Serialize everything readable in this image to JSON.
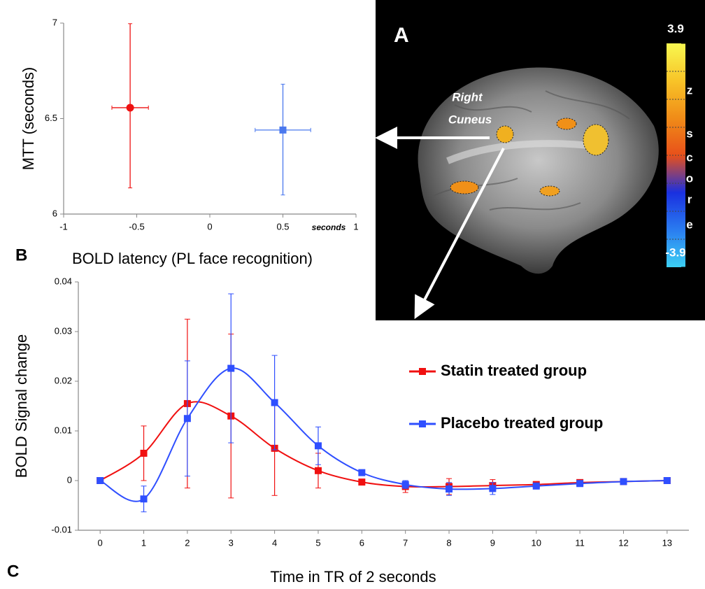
{
  "panel_a": {
    "label": "A",
    "annotation": [
      "Right",
      "Cuneus"
    ],
    "colorbar": {
      "lim": [
        -3.9,
        3.9
      ],
      "ticks": [
        3.9,
        -3.9
      ],
      "colors": [
        "#3cd0f4",
        "#2a7cf0",
        "#1a30e0",
        "#e8501a",
        "#f08c18",
        "#f8c428",
        "#f8f850"
      ],
      "title": [
        "z",
        "s",
        "c",
        "o",
        "r",
        "e"
      ]
    }
  },
  "chart_data": [
    {
      "type": "scatter",
      "panel_label": "B",
      "xlabel": "BOLD latency (PL face recognition)",
      "ylabel": "MTT (seconds)",
      "annotation": "seconds",
      "xlim": [
        -1,
        1
      ],
      "xticks": [
        -1,
        -0.5,
        0,
        0.5,
        1
      ],
      "ylim": [
        6,
        7
      ],
      "yticks": [
        6,
        6.5,
        7
      ],
      "series": [
        {
          "color": "#ee1111",
          "marker": "circle",
          "x": [
            -0.545
          ],
          "values": [
            6.557
          ],
          "xerr": [
            0.125
          ],
          "yerr_minus": [
            0.42
          ],
          "yerr_plus": [
            0.44
          ]
        },
        {
          "color": "#4a78ee",
          "marker": "square",
          "x": [
            0.5
          ],
          "values": [
            6.44
          ],
          "xerr": [
            0.19
          ],
          "yerr_minus": [
            0.34
          ],
          "yerr_plus": [
            0.24
          ]
        }
      ]
    },
    {
      "type": "line",
      "panel_label": "C",
      "xlabel": "Time in TR of 2 seconds",
      "ylabel": "BOLD Signal change",
      "x": [
        0,
        1,
        2,
        3,
        4,
        5,
        6,
        7,
        8,
        9,
        10,
        11,
        12,
        13
      ],
      "xlim": [
        -0.5,
        13.5
      ],
      "xticks": [
        0,
        1,
        2,
        3,
        4,
        5,
        6,
        7,
        8,
        9,
        10,
        11,
        12,
        13
      ],
      "ylim": [
        -0.01,
        0.04
      ],
      "yticks": [
        -0.01,
        0,
        0.01,
        0.02,
        0.03,
        0.04
      ],
      "series": [
        {
          "name": "Statin treated group",
          "color": "#f01010",
          "values": [
            0,
            0.0055,
            0.0155,
            0.013,
            0.0065,
            0.002,
            -0.0003,
            -0.0012,
            -0.0012,
            -0.001,
            -0.0008,
            -0.0004,
            -0.0002,
            0
          ],
          "errors": [
            0,
            0.0055,
            0.017,
            0.0165,
            0.0095,
            0.0035,
            0.0003,
            0.0012,
            0.0016,
            0.0012,
            0.0006,
            0.0003,
            0.0003,
            0
          ]
        },
        {
          "name": "Placebo treated group",
          "color": "#2f4fff",
          "values": [
            0,
            -0.0037,
            0.0125,
            0.0226,
            0.0157,
            0.007,
            0.0016,
            -0.0008,
            -0.0017,
            -0.0016,
            -0.0011,
            -0.0006,
            -0.0002,
            0
          ],
          "errors": [
            0,
            0.0026,
            0.0116,
            0.015,
            0.0095,
            0.0038,
            0.0005,
            0.0008,
            0.0013,
            0.0012,
            0.0006,
            0.0003,
            0.0003,
            0
          ]
        }
      ]
    }
  ]
}
